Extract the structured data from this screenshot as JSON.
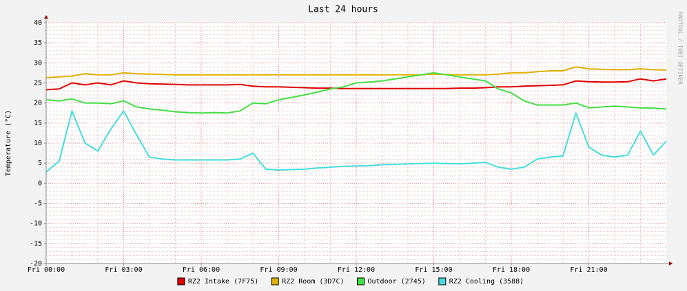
{
  "chart_data": {
    "type": "line",
    "title": "Last 24 hours",
    "y_label": "Temperature (°C)",
    "side_text": "RRDTOOL / TOBI OETIKER",
    "xlim": [
      0,
      24
    ],
    "xticks": [
      {
        "value": 0,
        "label": "Fri 00:00"
      },
      {
        "value": 3,
        "label": "Fri 03:00"
      },
      {
        "value": 6,
        "label": "Fri 06:00"
      },
      {
        "value": 9,
        "label": "Fri 09:00"
      },
      {
        "value": 12,
        "label": "Fri 12:00"
      },
      {
        "value": 15,
        "label": "Fri 15:00"
      },
      {
        "value": 18,
        "label": "Fri 18:00"
      },
      {
        "value": 21,
        "label": "Fri 21:00"
      }
    ],
    "ylim": [
      -20,
      40
    ],
    "yticks": [
      -20,
      -15,
      -10,
      -5,
      0,
      5,
      10,
      15,
      20,
      25,
      30,
      35,
      40
    ],
    "grid": true,
    "legend": "bottom",
    "x": [
      0,
      0.5,
      1,
      1.5,
      2,
      2.5,
      3,
      3.5,
      4,
      4.5,
      5,
      5.5,
      6,
      6.5,
      7,
      7.5,
      8,
      8.5,
      9,
      9.5,
      10,
      10.5,
      11,
      11.5,
      12,
      12.5,
      13,
      13.5,
      14,
      14.5,
      15,
      15.5,
      16,
      16.5,
      17,
      17.5,
      18,
      18.5,
      19,
      19.5,
      20,
      20.5,
      21,
      21.5,
      22,
      22.5,
      23,
      23.5,
      24
    ],
    "series": [
      {
        "name": "RZ2 Intake (7F75)",
        "color": "#e00000",
        "values": [
          23.3,
          23.5,
          25,
          24.5,
          25,
          24.5,
          25.5,
          25,
          24.8,
          24.7,
          24.6,
          24.5,
          24.5,
          24.5,
          24.5,
          24.6,
          24.2,
          24,
          24,
          23.9,
          23.8,
          23.7,
          23.7,
          23.6,
          23.6,
          23.6,
          23.6,
          23.6,
          23.6,
          23.6,
          23.6,
          23.6,
          23.7,
          23.7,
          23.8,
          24,
          24,
          24.2,
          24.3,
          24.4,
          24.5,
          25.5,
          25.3,
          25.2,
          25.2,
          25.3,
          26,
          25.5,
          26
        ]
      },
      {
        "name": "RZ2 Room (3D7C)",
        "color": "#e0b000",
        "values": [
          26.3,
          26.5,
          26.7,
          27.3,
          27,
          27,
          27.5,
          27.3,
          27.2,
          27.1,
          27,
          27,
          27,
          27,
          27,
          27,
          27,
          27,
          27,
          27,
          27,
          27,
          27,
          27,
          27,
          27,
          27,
          27,
          27,
          27,
          27.2,
          27.1,
          27,
          27,
          27,
          27.2,
          27.5,
          27.5,
          27.8,
          28,
          28,
          29,
          28.5,
          28.4,
          28.3,
          28.3,
          28.5,
          28.3,
          28.2
        ]
      },
      {
        "name": "Outdoor (2745)",
        "color": "#44dd44",
        "values": [
          20.8,
          20.5,
          21,
          20,
          20,
          19.8,
          20.5,
          19,
          18.5,
          18.2,
          17.8,
          17.6,
          17.5,
          17.6,
          17.5,
          18,
          20,
          19.8,
          20.8,
          21.4,
          22,
          22.7,
          23.5,
          24,
          25,
          25.2,
          25.5,
          26,
          26.5,
          27,
          27.5,
          27,
          26.5,
          26,
          25.5,
          23.5,
          22.5,
          20.5,
          19.5,
          19.5,
          19.5,
          20,
          18.8,
          19,
          19.2,
          19,
          18.8,
          18.7,
          18.5
        ]
      },
      {
        "name": "RZ2 Cooling (3588)",
        "color": "#44dddd",
        "values": [
          2.8,
          5.5,
          18,
          10,
          8,
          13.5,
          18,
          12,
          6.5,
          6,
          5.8,
          5.8,
          5.8,
          5.8,
          5.8,
          6,
          7.5,
          3.5,
          3.3,
          3.4,
          3.5,
          3.8,
          4,
          4.2,
          4.3,
          4.4,
          4.6,
          4.7,
          4.8,
          4.9,
          5,
          4.9,
          4.8,
          5,
          5.2,
          4,
          3.5,
          4,
          6,
          6.5,
          6.8,
          17.5,
          9,
          7,
          6.5,
          7,
          13,
          7,
          10.5
        ]
      }
    ]
  }
}
